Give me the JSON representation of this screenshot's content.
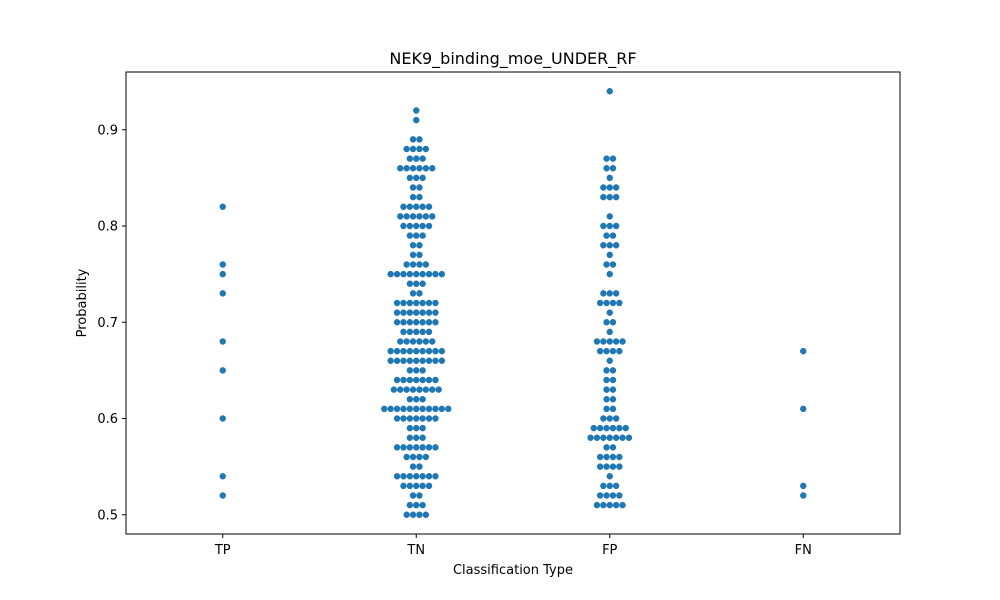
{
  "chart_data": {
    "type": "scatter",
    "subtype": "swarm",
    "title": "NEK9_binding_moe_UNDER_RF",
    "xlabel": "Classification Type",
    "ylabel": "Probability",
    "categories": [
      "TP",
      "TN",
      "FP",
      "FN"
    ],
    "ylim": [
      0.48,
      0.96
    ],
    "yticks": [
      0.5,
      0.6,
      0.7,
      0.8,
      0.9
    ],
    "ytick_labels": [
      "0.5",
      "0.6",
      "0.7",
      "0.8",
      "0.9"
    ],
    "grid": false,
    "legend": "none",
    "point_color": "#1f77b4",
    "series": [
      {
        "category": "TP",
        "values": [
          0.82,
          0.76,
          0.75,
          0.73,
          0.68,
          0.65,
          0.6,
          0.54,
          0.52
        ]
      },
      {
        "category": "TN",
        "values": [
          0.92,
          0.91,
          0.89,
          0.89,
          0.88,
          0.88,
          0.88,
          0.88,
          0.87,
          0.87,
          0.87,
          0.86,
          0.86,
          0.86,
          0.86,
          0.86,
          0.86,
          0.85,
          0.85,
          0.85,
          0.84,
          0.84,
          0.83,
          0.83,
          0.82,
          0.82,
          0.82,
          0.82,
          0.82,
          0.81,
          0.81,
          0.81,
          0.81,
          0.81,
          0.81,
          0.8,
          0.8,
          0.8,
          0.8,
          0.8,
          0.79,
          0.79,
          0.79,
          0.78,
          0.78,
          0.77,
          0.77,
          0.76,
          0.76,
          0.76,
          0.76,
          0.75,
          0.75,
          0.75,
          0.75,
          0.75,
          0.75,
          0.75,
          0.75,
          0.75,
          0.74,
          0.74,
          0.74,
          0.73,
          0.73,
          0.72,
          0.72,
          0.72,
          0.72,
          0.72,
          0.72,
          0.72,
          0.71,
          0.71,
          0.71,
          0.71,
          0.71,
          0.71,
          0.71,
          0.7,
          0.7,
          0.7,
          0.7,
          0.7,
          0.7,
          0.7,
          0.69,
          0.69,
          0.69,
          0.69,
          0.69,
          0.68,
          0.68,
          0.68,
          0.68,
          0.68,
          0.68,
          0.67,
          0.67,
          0.67,
          0.67,
          0.67,
          0.67,
          0.67,
          0.67,
          0.67,
          0.66,
          0.66,
          0.66,
          0.66,
          0.66,
          0.66,
          0.66,
          0.66,
          0.66,
          0.65,
          0.65,
          0.65,
          0.64,
          0.64,
          0.64,
          0.64,
          0.64,
          0.64,
          0.64,
          0.63,
          0.63,
          0.63,
          0.63,
          0.63,
          0.63,
          0.63,
          0.63,
          0.62,
          0.62,
          0.62,
          0.61,
          0.61,
          0.61,
          0.61,
          0.61,
          0.61,
          0.61,
          0.61,
          0.61,
          0.61,
          0.61,
          0.6,
          0.6,
          0.6,
          0.6,
          0.6,
          0.6,
          0.6,
          0.59,
          0.59,
          0.59,
          0.58,
          0.58,
          0.58,
          0.57,
          0.57,
          0.57,
          0.57,
          0.57,
          0.57,
          0.57,
          0.56,
          0.56,
          0.56,
          0.56,
          0.55,
          0.55,
          0.54,
          0.54,
          0.54,
          0.54,
          0.54,
          0.54,
          0.54,
          0.53,
          0.53,
          0.53,
          0.53,
          0.53,
          0.52,
          0.52,
          0.51,
          0.51,
          0.51,
          0.5,
          0.5,
          0.5,
          0.5
        ]
      },
      {
        "category": "FP",
        "values": [
          0.94,
          0.87,
          0.87,
          0.86,
          0.86,
          0.85,
          0.84,
          0.84,
          0.84,
          0.83,
          0.83,
          0.83,
          0.81,
          0.8,
          0.8,
          0.8,
          0.79,
          0.79,
          0.78,
          0.78,
          0.78,
          0.77,
          0.76,
          0.76,
          0.75,
          0.73,
          0.73,
          0.73,
          0.72,
          0.72,
          0.72,
          0.72,
          0.71,
          0.7,
          0.7,
          0.69,
          0.68,
          0.68,
          0.68,
          0.68,
          0.68,
          0.67,
          0.67,
          0.67,
          0.67,
          0.66,
          0.65,
          0.65,
          0.64,
          0.64,
          0.63,
          0.63,
          0.62,
          0.62,
          0.61,
          0.61,
          0.6,
          0.6,
          0.6,
          0.59,
          0.59,
          0.59,
          0.59,
          0.59,
          0.59,
          0.58,
          0.58,
          0.58,
          0.58,
          0.58,
          0.58,
          0.58,
          0.57,
          0.57,
          0.56,
          0.56,
          0.56,
          0.56,
          0.55,
          0.55,
          0.55,
          0.55,
          0.54,
          0.53,
          0.53,
          0.53,
          0.52,
          0.52,
          0.52,
          0.52,
          0.51,
          0.51,
          0.51,
          0.51,
          0.51
        ]
      },
      {
        "category": "FN",
        "values": [
          0.67,
          0.61,
          0.53,
          0.52
        ]
      }
    ]
  }
}
